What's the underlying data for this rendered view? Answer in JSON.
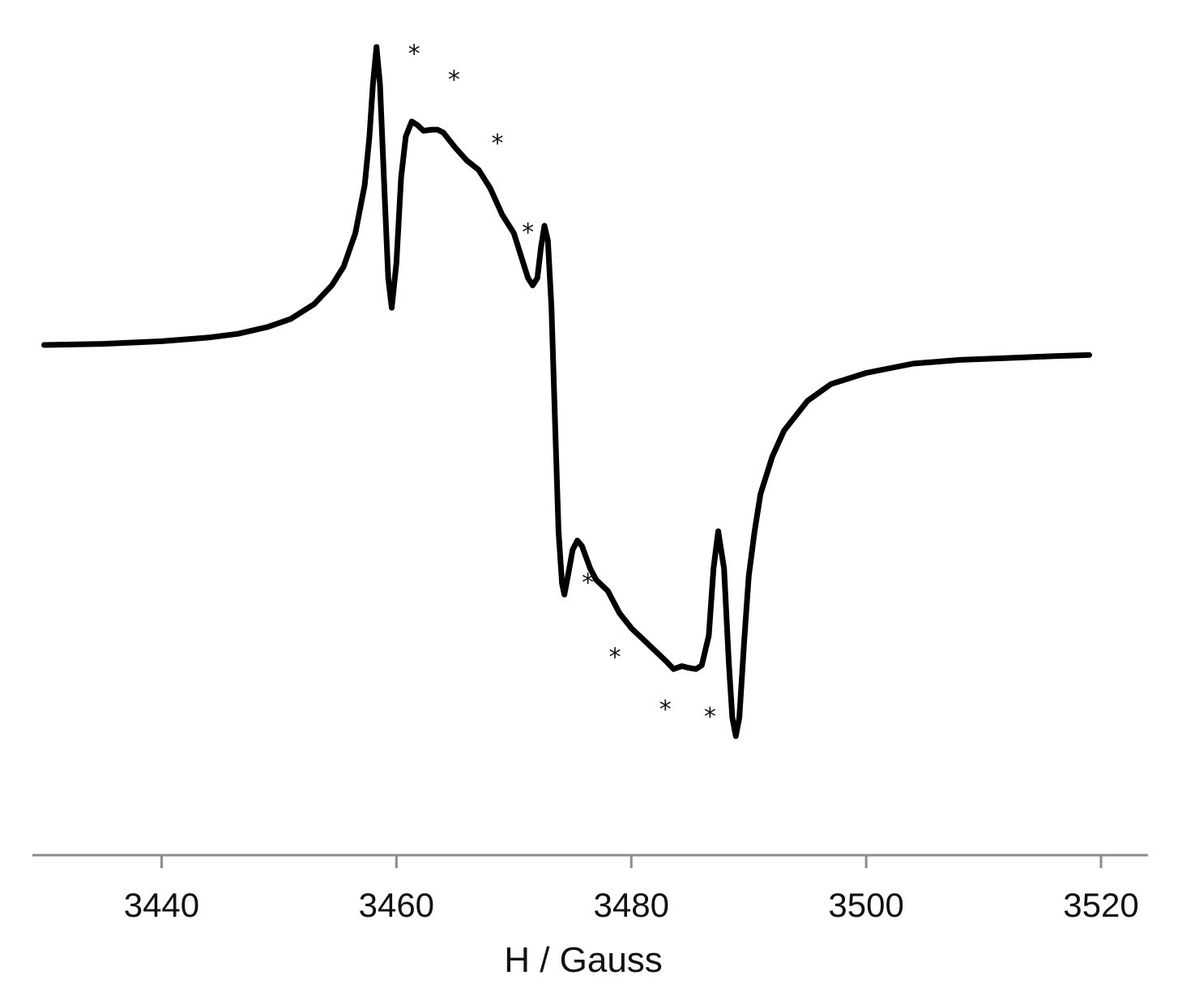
{
  "chart_data": {
    "type": "line",
    "title": "",
    "xlabel": "H / Gauss",
    "ylabel": "",
    "xlim": [
      3429,
      3524
    ],
    "ylim": [
      -1.25,
      1.0
    ],
    "xticks": [
      3440,
      3460,
      3480,
      3500,
      3520
    ],
    "grid": false,
    "legend": "none",
    "line_color": "#000000",
    "axis_color": "#8c8c8c",
    "series": [
      {
        "values": [
          [
            3430.0,
            0.0
          ],
          [
            3435.0,
            0.003
          ],
          [
            3440.0,
            0.01
          ],
          [
            3444.0,
            0.02
          ],
          [
            3446.5,
            0.03
          ],
          [
            3449.0,
            0.048
          ],
          [
            3451.0,
            0.07
          ],
          [
            3453.0,
            0.11
          ],
          [
            3454.5,
            0.16
          ],
          [
            3455.5,
            0.21
          ],
          [
            3456.5,
            0.3
          ],
          [
            3457.3,
            0.43
          ],
          [
            3457.7,
            0.56
          ],
          [
            3458.0,
            0.7
          ],
          [
            3458.3,
            0.8
          ],
          [
            3458.6,
            0.7
          ],
          [
            3459.0,
            0.4
          ],
          [
            3459.3,
            0.18
          ],
          [
            3459.6,
            0.1
          ],
          [
            3460.0,
            0.22
          ],
          [
            3460.4,
            0.45
          ],
          [
            3460.8,
            0.56
          ],
          [
            3461.3,
            0.6
          ],
          [
            3461.8,
            0.59
          ],
          [
            3462.3,
            0.575
          ],
          [
            3463.0,
            0.578
          ],
          [
            3463.5,
            0.578
          ],
          [
            3464.0,
            0.57
          ],
          [
            3465.0,
            0.53
          ],
          [
            3466.0,
            0.495
          ],
          [
            3467.0,
            0.47
          ],
          [
            3468.0,
            0.42
          ],
          [
            3469.0,
            0.35
          ],
          [
            3470.0,
            0.3
          ],
          [
            3470.7,
            0.23
          ],
          [
            3471.2,
            0.18
          ],
          [
            3471.6,
            0.16
          ],
          [
            3472.0,
            0.18
          ],
          [
            3472.3,
            0.26
          ],
          [
            3472.6,
            0.32
          ],
          [
            3472.9,
            0.28
          ],
          [
            3473.2,
            0.1
          ],
          [
            3473.5,
            -0.2
          ],
          [
            3473.8,
            -0.5
          ],
          [
            3474.1,
            -0.64
          ],
          [
            3474.3,
            -0.67
          ],
          [
            3474.6,
            -0.62
          ],
          [
            3475.0,
            -0.55
          ],
          [
            3475.4,
            -0.525
          ],
          [
            3475.8,
            -0.54
          ],
          [
            3476.5,
            -0.6
          ],
          [
            3477.0,
            -0.63
          ],
          [
            3478.0,
            -0.66
          ],
          [
            3479.0,
            -0.72
          ],
          [
            3480.0,
            -0.76
          ],
          [
            3481.0,
            -0.79
          ],
          [
            3482.0,
            -0.82
          ],
          [
            3483.0,
            -0.85
          ],
          [
            3483.6,
            -0.87
          ],
          [
            3484.3,
            -0.862
          ],
          [
            3484.8,
            -0.866
          ],
          [
            3485.5,
            -0.87
          ],
          [
            3486.0,
            -0.86
          ],
          [
            3486.6,
            -0.78
          ],
          [
            3487.0,
            -0.6
          ],
          [
            3487.4,
            -0.5
          ],
          [
            3487.9,
            -0.6
          ],
          [
            3488.3,
            -0.85
          ],
          [
            3488.6,
            -1.0
          ],
          [
            3488.9,
            -1.05
          ],
          [
            3489.2,
            -1.0
          ],
          [
            3489.6,
            -0.8
          ],
          [
            3490.0,
            -0.62
          ],
          [
            3490.5,
            -0.5
          ],
          [
            3491.0,
            -0.4
          ],
          [
            3492.0,
            -0.3
          ],
          [
            3493.0,
            -0.23
          ],
          [
            3495.0,
            -0.15
          ],
          [
            3497.0,
            -0.105
          ],
          [
            3500.0,
            -0.075
          ],
          [
            3504.0,
            -0.05
          ],
          [
            3508.0,
            -0.04
          ],
          [
            3512.0,
            -0.035
          ],
          [
            3516.0,
            -0.03
          ],
          [
            3519.0,
            -0.027
          ]
        ]
      }
    ],
    "annotations": [
      {
        "text": "*",
        "x": 3461.5,
        "y": 0.76
      },
      {
        "text": "*",
        "x": 3464.9,
        "y": 0.69
      },
      {
        "text": "*",
        "x": 3468.6,
        "y": 0.52
      },
      {
        "text": "*",
        "x": 3471.2,
        "y": 0.28
      },
      {
        "text": "*",
        "x": 3476.3,
        "y": -0.66
      },
      {
        "text": "*",
        "x": 3478.6,
        "y": -0.86
      },
      {
        "text": "*",
        "x": 3482.9,
        "y": -1.0
      },
      {
        "text": "*",
        "x": 3486.7,
        "y": -1.02
      }
    ]
  }
}
